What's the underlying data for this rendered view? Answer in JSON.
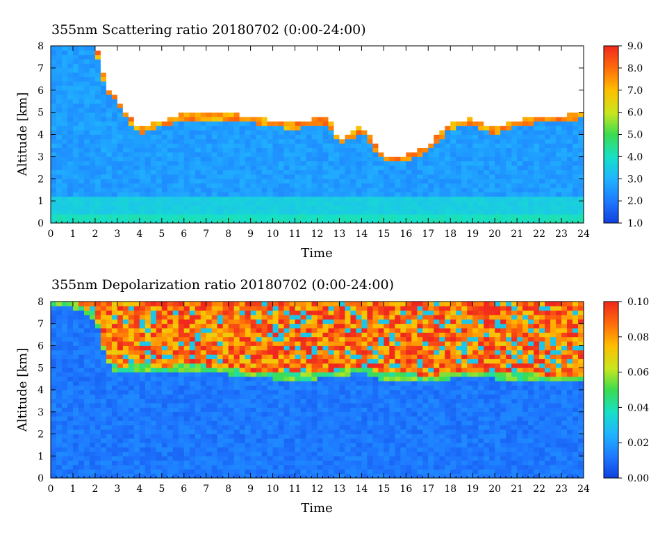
{
  "chart_data": [
    {
      "type": "heatmap",
      "title": "355nm Scattering ratio  20180702 (0:00-24:00)",
      "xlabel": "Time",
      "ylabel": "Altitude [km]",
      "xlim": [
        0,
        24
      ],
      "ylim": [
        0,
        8
      ],
      "x_ticks": [
        "0",
        "1",
        "2",
        "3",
        "4",
        "5",
        "6",
        "7",
        "8",
        "9",
        "10",
        "11",
        "12",
        "13",
        "14",
        "15",
        "16",
        "17",
        "18",
        "19",
        "20",
        "21",
        "22",
        "23",
        "24"
      ],
      "y_ticks": [
        "0",
        "1",
        "2",
        "3",
        "4",
        "5",
        "6",
        "7",
        "8"
      ],
      "colorbar": {
        "range": [
          1.0,
          9.0
        ],
        "ticks": [
          "1.0",
          "2.0",
          "3.0",
          "4.0",
          "5.0",
          "6.0",
          "7.0",
          "8.0",
          "9.0"
        ]
      },
      "cloud_base_km": [
        {
          "t": 0,
          "h": 8.0
        },
        {
          "t": 1,
          "h": 8.0
        },
        {
          "t": 2,
          "h": 8.0
        },
        {
          "t": 2.5,
          "h": 6.0
        },
        {
          "t": 3,
          "h": 5.4
        },
        {
          "t": 3.5,
          "h": 4.6
        },
        {
          "t": 4,
          "h": 4.1
        },
        {
          "t": 5,
          "h": 4.4
        },
        {
          "t": 6,
          "h": 4.7
        },
        {
          "t": 7,
          "h": 4.7
        },
        {
          "t": 8,
          "h": 4.7
        },
        {
          "t": 9,
          "h": 4.6
        },
        {
          "t": 10,
          "h": 4.4
        },
        {
          "t": 11,
          "h": 4.3
        },
        {
          "t": 12,
          "h": 4.5
        },
        {
          "t": 12.5,
          "h": 4.5
        },
        {
          "t": 13,
          "h": 3.5
        },
        {
          "t": 14,
          "h": 4.2
        },
        {
          "t": 15,
          "h": 2.8
        },
        {
          "t": 16,
          "h": 2.8
        },
        {
          "t": 17,
          "h": 3.3
        },
        {
          "t": 18,
          "h": 4.3
        },
        {
          "t": 19,
          "h": 4.5
        },
        {
          "t": 20,
          "h": 4.0
        },
        {
          "t": 21,
          "h": 4.4
        },
        {
          "t": 22,
          "h": 4.6
        },
        {
          "t": 23,
          "h": 4.6
        },
        {
          "t": 24,
          "h": 4.8
        }
      ],
      "boundary_layer_top_km": 1.2,
      "background_ratio": 2.6
    },
    {
      "type": "heatmap",
      "title": "355nm Depolarization ratio  20180702 (0:00-24:00)",
      "xlabel": "Time",
      "ylabel": "Altitude [km]",
      "xlim": [
        0,
        24
      ],
      "ylim": [
        0,
        8
      ],
      "x_ticks": [
        "0",
        "1",
        "2",
        "3",
        "4",
        "5",
        "6",
        "7",
        "8",
        "9",
        "10",
        "11",
        "12",
        "13",
        "14",
        "15",
        "16",
        "17",
        "18",
        "19",
        "20",
        "21",
        "22",
        "23",
        "24"
      ],
      "y_ticks": [
        "0",
        "1",
        "2",
        "3",
        "4",
        "5",
        "6",
        "7",
        "8"
      ],
      "colorbar": {
        "range": [
          0.0,
          0.1
        ],
        "ticks": [
          "0.00",
          "0.02",
          "0.04",
          "0.06",
          "0.08",
          "0.10"
        ]
      },
      "cloud_base_km": [
        {
          "t": 0,
          "h": 8.0
        },
        {
          "t": 1,
          "h": 8.0
        },
        {
          "t": 2,
          "h": 7.5
        },
        {
          "t": 2.5,
          "h": 5.6
        },
        {
          "t": 3,
          "h": 5.0
        },
        {
          "t": 4,
          "h": 5.2
        },
        {
          "t": 5,
          "h": 5.0
        },
        {
          "t": 6,
          "h": 5.2
        },
        {
          "t": 7,
          "h": 5.1
        },
        {
          "t": 8,
          "h": 5.0
        },
        {
          "t": 9,
          "h": 4.8
        },
        {
          "t": 10,
          "h": 4.8
        },
        {
          "t": 11,
          "h": 4.7
        },
        {
          "t": 12,
          "h": 4.8
        },
        {
          "t": 13,
          "h": 4.9
        },
        {
          "t": 14,
          "h": 5.1
        },
        {
          "t": 15,
          "h": 4.7
        },
        {
          "t": 16,
          "h": 4.8
        },
        {
          "t": 17,
          "h": 4.6
        },
        {
          "t": 18,
          "h": 4.8
        },
        {
          "t": 19,
          "h": 4.9
        },
        {
          "t": 20,
          "h": 4.8
        },
        {
          "t": 21,
          "h": 4.7
        },
        {
          "t": 22,
          "h": 4.7
        },
        {
          "t": 23,
          "h": 4.6
        },
        {
          "t": 24,
          "h": 4.6
        }
      ],
      "background_ratio": 0.012
    }
  ]
}
